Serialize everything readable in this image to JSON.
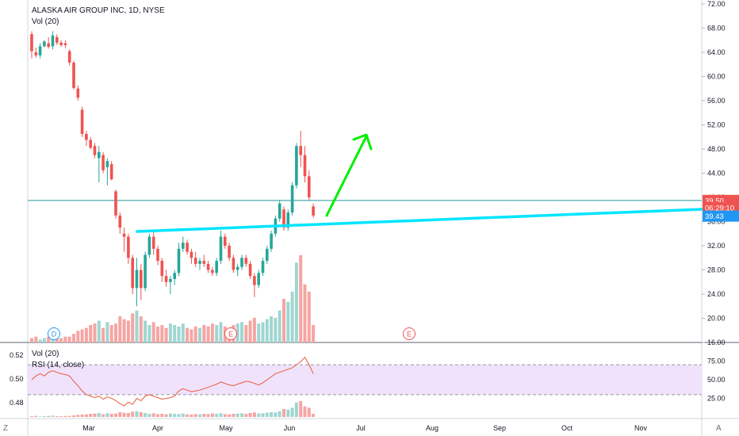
{
  "header": {
    "title": "ALASKA AIR GROUP INC, 1D, NYSE",
    "vol_label": "Vol (20)",
    "rsi_vol_label": "Vol (20)",
    "rsi_label": "RSI (14, close)"
  },
  "corners": {
    "left": "Z",
    "right": "A"
  },
  "colors": {
    "up": "#26a69a",
    "down": "#ef5350",
    "up_vol": "#9fd6d0",
    "down_vol": "#f5a5a3",
    "trendline": "#00e5ff",
    "arrow": "#00ee00",
    "rsi_line": "#e85a3c",
    "rsi_band": "#f0e2fb",
    "price_line": "#2196a0"
  },
  "chart_data": [
    {
      "type": "candlestick",
      "title": "ALASKA AIR GROUP INC, 1D, NYSE",
      "x_tick_labels": [
        "Mar",
        "Apr",
        "May",
        "Jun",
        "Jul",
        "Aug",
        "Sep",
        "Oct",
        "Nov"
      ],
      "y_tick_labels": [
        "72.00",
        "68.00",
        "64.00",
        "60.00",
        "56.00",
        "52.00",
        "48.00",
        "44.00",
        "40.00",
        "36.00",
        "32.00",
        "28.00",
        "24.00",
        "20.00",
        "16.00"
      ],
      "ylim": [
        16,
        72
      ],
      "price_tags": [
        {
          "label": "39.50",
          "value": 39.5,
          "color": "#ef5350"
        },
        {
          "label": "06:29:10",
          "value": 38.3,
          "color": "#ef5350"
        },
        {
          "label": "39.43",
          "value": 36.9,
          "color": "#2196f3"
        }
      ],
      "current_price": 39.5,
      "grid": false,
      "candles": [
        {
          "o": 67,
          "h": 67.5,
          "l": 63,
          "c": 64.2
        },
        {
          "o": 64,
          "h": 64.8,
          "l": 63.1,
          "c": 63.5
        },
        {
          "o": 63.5,
          "h": 65.5,
          "l": 63,
          "c": 65
        },
        {
          "o": 65,
          "h": 66,
          "l": 64.8,
          "c": 65.8
        },
        {
          "o": 65.5,
          "h": 66.5,
          "l": 64.6,
          "c": 64.9
        },
        {
          "o": 65,
          "h": 67.5,
          "l": 64.5,
          "c": 66.8
        },
        {
          "o": 66.5,
          "h": 67,
          "l": 65.2,
          "c": 65.6
        },
        {
          "o": 65.6,
          "h": 66,
          "l": 64.9,
          "c": 65.2
        },
        {
          "o": 65.5,
          "h": 66,
          "l": 64.7,
          "c": 65.2
        },
        {
          "o": 64.2,
          "h": 64.5,
          "l": 61.8,
          "c": 62.3
        },
        {
          "o": 62.3,
          "h": 62.6,
          "l": 57.8,
          "c": 58.1
        },
        {
          "o": 58,
          "h": 58.5,
          "l": 56,
          "c": 56.5
        },
        {
          "o": 54.5,
          "h": 55,
          "l": 50,
          "c": 50.5
        },
        {
          "o": 50.5,
          "h": 51,
          "l": 48.5,
          "c": 49.5
        },
        {
          "o": 49.5,
          "h": 50,
          "l": 48,
          "c": 48.2
        },
        {
          "o": 48.5,
          "h": 49,
          "l": 46.5,
          "c": 47
        },
        {
          "o": 46.5,
          "h": 48.5,
          "l": 42.5,
          "c": 47.5
        },
        {
          "o": 47,
          "h": 47.5,
          "l": 44,
          "c": 44.5
        },
        {
          "o": 45,
          "h": 46.5,
          "l": 42,
          "c": 46
        },
        {
          "o": 45.5,
          "h": 46,
          "l": 42.8,
          "c": 43
        },
        {
          "o": 41,
          "h": 41.3,
          "l": 36.5,
          "c": 37
        },
        {
          "o": 37,
          "h": 37.5,
          "l": 34,
          "c": 35
        },
        {
          "o": 34,
          "h": 35,
          "l": 31,
          "c": 33.5
        },
        {
          "o": 33.5,
          "h": 34,
          "l": 29,
          "c": 30
        },
        {
          "o": 30,
          "h": 30.5,
          "l": 24,
          "c": 25
        },
        {
          "o": 25,
          "h": 30,
          "l": 22,
          "c": 28
        },
        {
          "o": 28,
          "h": 29,
          "l": 23,
          "c": 25
        },
        {
          "o": 25,
          "h": 31,
          "l": 24.5,
          "c": 30.5
        },
        {
          "o": 30.5,
          "h": 34,
          "l": 30,
          "c": 33.5
        },
        {
          "o": 33.5,
          "h": 34.5,
          "l": 30.5,
          "c": 31.5
        },
        {
          "o": 31.5,
          "h": 32,
          "l": 28.8,
          "c": 29.5
        },
        {
          "o": 29.5,
          "h": 30,
          "l": 26,
          "c": 27
        },
        {
          "o": 27,
          "h": 28,
          "l": 25.2,
          "c": 26
        },
        {
          "o": 26,
          "h": 27,
          "l": 24,
          "c": 26.5
        },
        {
          "o": 26.5,
          "h": 28,
          "l": 25.5,
          "c": 27.5
        },
        {
          "o": 27.5,
          "h": 32.5,
          "l": 27,
          "c": 31.5
        },
        {
          "o": 31.5,
          "h": 33.5,
          "l": 31,
          "c": 32.5
        },
        {
          "o": 32.5,
          "h": 33,
          "l": 30.5,
          "c": 31
        },
        {
          "o": 31,
          "h": 31.5,
          "l": 29,
          "c": 30
        },
        {
          "o": 30,
          "h": 31,
          "l": 28.5,
          "c": 29
        },
        {
          "o": 29,
          "h": 30,
          "l": 28,
          "c": 29.5
        },
        {
          "o": 29.5,
          "h": 30.5,
          "l": 28.5,
          "c": 29
        },
        {
          "o": 29,
          "h": 29.5,
          "l": 27.5,
          "c": 28
        },
        {
          "o": 28,
          "h": 28.5,
          "l": 27,
          "c": 27.5
        },
        {
          "o": 27.5,
          "h": 30,
          "l": 27,
          "c": 29.5
        },
        {
          "o": 29.5,
          "h": 34.5,
          "l": 29,
          "c": 33.5
        },
        {
          "o": 33.5,
          "h": 34,
          "l": 31.5,
          "c": 32
        },
        {
          "o": 32,
          "h": 32.5,
          "l": 29.5,
          "c": 30
        },
        {
          "o": 30,
          "h": 30.5,
          "l": 27.5,
          "c": 28
        },
        {
          "o": 28,
          "h": 29,
          "l": 27,
          "c": 28.5
        },
        {
          "o": 28.5,
          "h": 30.5,
          "l": 28,
          "c": 30
        },
        {
          "o": 30,
          "h": 30.5,
          "l": 28.5,
          "c": 29
        },
        {
          "o": 29,
          "h": 29.5,
          "l": 26.5,
          "c": 27
        },
        {
          "o": 27,
          "h": 27.5,
          "l": 23.5,
          "c": 25.5
        },
        {
          "o": 25.5,
          "h": 28,
          "l": 25,
          "c": 27.5
        },
        {
          "o": 27.5,
          "h": 30,
          "l": 27,
          "c": 29.5
        },
        {
          "o": 29.5,
          "h": 32,
          "l": 29,
          "c": 31.5
        },
        {
          "o": 31.5,
          "h": 34.5,
          "l": 31,
          "c": 34
        },
        {
          "o": 34,
          "h": 37,
          "l": 33.5,
          "c": 36.5
        },
        {
          "o": 36.5,
          "h": 39.5,
          "l": 36,
          "c": 39
        },
        {
          "o": 38,
          "h": 38.5,
          "l": 34.5,
          "c": 35
        },
        {
          "o": 35,
          "h": 38,
          "l": 34.5,
          "c": 37.5
        },
        {
          "o": 37.5,
          "h": 42.5,
          "l": 37,
          "c": 42
        },
        {
          "o": 42,
          "h": 49,
          "l": 41.5,
          "c": 48.5
        },
        {
          "o": 48.5,
          "h": 51,
          "l": 45,
          "c": 47
        },
        {
          "o": 47,
          "h": 48.5,
          "l": 42.5,
          "c": 43.5
        },
        {
          "o": 43.5,
          "h": 44.5,
          "l": 39.5,
          "c": 40
        },
        {
          "o": 38.5,
          "h": 39,
          "l": 36.6,
          "c": 37
        }
      ],
      "volume": [
        3,
        4,
        2,
        3,
        4,
        5,
        3,
        3,
        4,
        4,
        6,
        8,
        9,
        10,
        12,
        13,
        15,
        10,
        14,
        12,
        13,
        18,
        16,
        15,
        20,
        22,
        18,
        15,
        12,
        14,
        11,
        12,
        10,
        13,
        12,
        11,
        13,
        10,
        9,
        11,
        10,
        12,
        11,
        13,
        12,
        14,
        11,
        10,
        12,
        13,
        14,
        12,
        15,
        17,
        13,
        14,
        16,
        18,
        17,
        22,
        30,
        28,
        35,
        55,
        60,
        40,
        35,
        12
      ]
    },
    {
      "type": "line",
      "title": "RSI (14, close)",
      "y_tick_labels_left": [
        "0.52",
        "0.50",
        "0.48"
      ],
      "y_tick_labels_right": [
        "75.00",
        "50.00",
        "25.00"
      ],
      "band": [
        30,
        70
      ],
      "ylim": [
        15,
        85
      ],
      "values": [
        50,
        55,
        58,
        55,
        60,
        62,
        60,
        58,
        57,
        55,
        48,
        42,
        35,
        30,
        28,
        26,
        28,
        24,
        27,
        25,
        22,
        18,
        15,
        20,
        17,
        25,
        22,
        28,
        30,
        28,
        26,
        24,
        25,
        26,
        28,
        35,
        38,
        36,
        34,
        35,
        36,
        38,
        40,
        42,
        44,
        47,
        45,
        43,
        42,
        44,
        46,
        48,
        47,
        45,
        43,
        46,
        50,
        54,
        58,
        60,
        62,
        64,
        66,
        70,
        74,
        80,
        70,
        58
      ],
      "volume": [
        3,
        4,
        2,
        3,
        4,
        5,
        3,
        3,
        4,
        4,
        6,
        8,
        9,
        10,
        12,
        13,
        15,
        10,
        14,
        12,
        13,
        18,
        16,
        15,
        20,
        22,
        18,
        15,
        12,
        14,
        11,
        12,
        10,
        13,
        12,
        11,
        13,
        10,
        9,
        11,
        10,
        12,
        11,
        13,
        12,
        14,
        11,
        10,
        12,
        13,
        14,
        12,
        15,
        17,
        13,
        14,
        16,
        18,
        17,
        22,
        30,
        28,
        35,
        55,
        60,
        40,
        35,
        12
      ]
    }
  ],
  "markers": [
    {
      "label": "D",
      "color": "#2196f3"
    },
    {
      "label": "E",
      "color": "#ef5350"
    },
    {
      "label": "E",
      "color": "#ef5350"
    }
  ]
}
